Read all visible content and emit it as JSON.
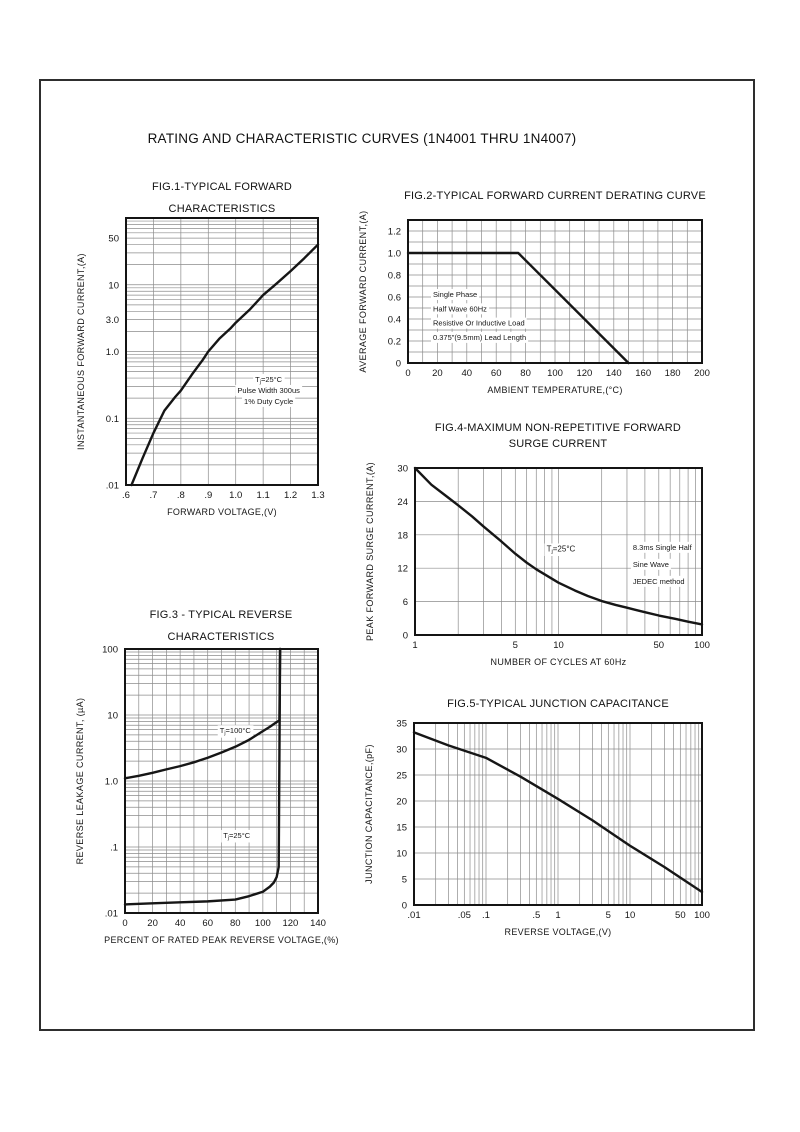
{
  "page": {
    "title": "RATING AND CHARACTERISTIC CURVES (1N4001 THRU 1N4007)"
  },
  "chart_data": [
    {
      "id": "fig1",
      "type": "line",
      "title_lines": [
        "FIG.1-TYPICAL FORWARD",
        "CHARACTERISTICS"
      ],
      "xlabel": "FORWARD VOLTAGE,(V)",
      "ylabel": "INSTANTANEOUS FORWARD CURRENT,(A)",
      "xscale": "linear",
      "yscale": "log",
      "xlim": [
        0.6,
        1.3
      ],
      "ylim": [
        0.01,
        100
      ],
      "xgrid": {
        "scale": "linear",
        "step": 0.1
      },
      "ygrid": {
        "scale": "log"
      },
      "xticks": {
        "values": [
          0.6,
          0.7,
          0.8,
          0.9,
          1.0,
          1.1,
          1.2,
          1.3
        ],
        "labels": [
          ".6",
          ".7",
          ".8",
          ".9",
          "1.0",
          "1.1",
          "1.2",
          "1.3"
        ]
      },
      "yticks": {
        "values": [
          50,
          10,
          3,
          1,
          0.1,
          0.01
        ],
        "labels": [
          "50",
          "10",
          "3.0",
          "1.0",
          "0.1",
          ".01"
        ]
      },
      "series": [
        {
          "name": "forward-current",
          "points": [
            [
              0.62,
              0.01
            ],
            [
              0.66,
              0.025
            ],
            [
              0.7,
              0.06
            ],
            [
              0.74,
              0.13
            ],
            [
              0.78,
              0.21
            ],
            [
              0.8,
              0.26
            ],
            [
              0.84,
              0.45
            ],
            [
              0.88,
              0.75
            ],
            [
              0.9,
              1.0
            ],
            [
              0.94,
              1.55
            ],
            [
              0.98,
              2.2
            ],
            [
              1.0,
              2.7
            ],
            [
              1.05,
              4.2
            ],
            [
              1.1,
              7.0
            ],
            [
              1.15,
              10.5
            ],
            [
              1.2,
              16
            ],
            [
              1.25,
              25
            ],
            [
              1.3,
              40
            ]
          ]
        }
      ],
      "annotations": [
        {
          "lines": [
            "Tj=25°C",
            "Pulse Width 300us",
            "1% Duty Cycle"
          ],
          "x": 1.12,
          "y": 0.35,
          "anchor": "middle",
          "line_height": 11,
          "font": 7.5
        }
      ]
    },
    {
      "id": "fig2",
      "type": "line",
      "title_lines": [
        "FIG.2-TYPICAL FORWARD CURRENT DERATING CURVE"
      ],
      "xlabel": "AMBIENT TEMPERATURE,(°C)",
      "ylabel": "AVERAGE FORWARD CURRENT,(A)",
      "xscale": "linear",
      "yscale": "linear",
      "xlim": [
        0,
        200
      ],
      "ylim": [
        0,
        1.3
      ],
      "xgrid": {
        "scale": "linear",
        "step": 10
      },
      "ygrid": {
        "scale": "linear",
        "step": 0.1
      },
      "xticks": {
        "values": [
          0,
          20,
          40,
          60,
          80,
          100,
          120,
          140,
          160,
          180,
          200
        ],
        "labels": [
          "0",
          "20",
          "40",
          "60",
          "80",
          "100",
          "120",
          "140",
          "160",
          "180",
          "200"
        ]
      },
      "yticks": {
        "values": [
          0,
          0.2,
          0.4,
          0.6,
          0.8,
          1.0,
          1.2
        ],
        "labels": [
          "0",
          "0.2",
          "0.4",
          "0.6",
          "0.8",
          "1.0",
          "1.2"
        ]
      },
      "series": [
        {
          "name": "derating",
          "points": [
            [
              0,
              1.0
            ],
            [
              75,
              1.0
            ],
            [
              150,
              0
            ]
          ]
        }
      ],
      "annotations": [
        {
          "lines": [
            "Single Phase",
            "Half Wave 60Hz",
            "Resistive Or Inductive Load",
            "0.375\"(9.5mm) Lead Length"
          ],
          "x": 17,
          "y": 0.6,
          "anchor": "start",
          "line_height": 14.3,
          "font": 7.5
        }
      ]
    },
    {
      "id": "fig4",
      "type": "line",
      "title_lines": [
        "FIG.4-MAXIMUM NON-REPETITIVE FORWARD",
        "SURGE CURRENT"
      ],
      "xlabel": "NUMBER OF CYCLES AT 60Hz",
      "ylabel": "PEAK FORWARD SURGE CURRENT,(A)",
      "xscale": "log",
      "yscale": "linear",
      "xlim": [
        1,
        100
      ],
      "ylim": [
        0,
        30
      ],
      "xgrid": {
        "scale": "log"
      },
      "ygrid": {
        "scale": "linear",
        "step": 6
      },
      "xticks": {
        "values": [
          1,
          5,
          10,
          50,
          100
        ],
        "labels": [
          "1",
          "5",
          "10",
          "50",
          "100"
        ]
      },
      "yticks": {
        "values": [
          0,
          6,
          12,
          18,
          24,
          30
        ],
        "labels": [
          "0",
          "6",
          "12",
          "18",
          "24",
          "30"
        ]
      },
      "series": [
        {
          "name": "surge-current",
          "points": [
            [
              1,
              30
            ],
            [
              1.3,
              27
            ],
            [
              1.7,
              24.7
            ],
            [
              2,
              23.3
            ],
            [
              2.5,
              21.3
            ],
            [
              3,
              19.5
            ],
            [
              4,
              16.8
            ],
            [
              5,
              14.6
            ],
            [
              6,
              13
            ],
            [
              7,
              11.8
            ],
            [
              8,
              10.9
            ],
            [
              10,
              9.4
            ],
            [
              13,
              8
            ],
            [
              16,
              7
            ],
            [
              20,
              6.1
            ],
            [
              25,
              5.4
            ],
            [
              30,
              4.9
            ],
            [
              40,
              4.1
            ],
            [
              50,
              3.5
            ],
            [
              65,
              2.9
            ],
            [
              80,
              2.4
            ],
            [
              100,
              1.9
            ]
          ]
        }
      ],
      "annotations": [
        {
          "lines": [
            "Tj=25°C"
          ],
          "x": 10.4,
          "y": 15,
          "anchor": "middle",
          "line_height": 17,
          "font": 8
        },
        {
          "lines": [
            "8.3ms Single Half",
            "Sine Wave",
            "JEDEC method"
          ],
          "x": 33,
          "y": 15.3,
          "anchor": "start",
          "line_height": 17,
          "font": 7.5
        }
      ]
    },
    {
      "id": "fig3",
      "type": "line",
      "title_lines": [
        "FIG.3 - TYPICAL REVERSE",
        "CHARACTERISTICS"
      ],
      "xlabel": "PERCENT OF RATED PEAK REVERSE VOLTAGE,(%)",
      "ylabel": "REVERSE LEAKAGE CURRENT, (µA)",
      "xscale": "linear",
      "yscale": "log",
      "xlim": [
        0,
        140
      ],
      "ylim": [
        0.01,
        100
      ],
      "xgrid": {
        "scale": "linear",
        "step": 10
      },
      "ygrid": {
        "scale": "log"
      },
      "xticks": {
        "values": [
          0,
          20,
          40,
          60,
          80,
          100,
          120,
          140
        ],
        "labels": [
          "0",
          "20",
          "40",
          "60",
          "80",
          "100",
          "120",
          "140"
        ]
      },
      "yticks": {
        "values": [
          100,
          10,
          1,
          0.1,
          0.01
        ],
        "labels": [
          "100",
          "10",
          "1.0",
          ".1",
          ".01"
        ]
      },
      "series": [
        {
          "name": "Tj=100°C",
          "points": [
            [
              0,
              1.1
            ],
            [
              10,
              1.2
            ],
            [
              20,
              1.33
            ],
            [
              30,
              1.5
            ],
            [
              40,
              1.68
            ],
            [
              50,
              1.92
            ],
            [
              60,
              2.25
            ],
            [
              70,
              2.7
            ],
            [
              80,
              3.3
            ],
            [
              90,
              4.2
            ],
            [
              100,
              5.7
            ],
            [
              105,
              6.6
            ],
            [
              108,
              7.3
            ],
            [
              110,
              7.8
            ],
            [
              112,
              8.3
            ],
            [
              112.5,
              100
            ]
          ]
        },
        {
          "name": "Tj=25°C",
          "points": [
            [
              0,
              0.0135
            ],
            [
              20,
              0.014
            ],
            [
              40,
              0.0145
            ],
            [
              60,
              0.015
            ],
            [
              80,
              0.016
            ],
            [
              90,
              0.018
            ],
            [
              100,
              0.021
            ],
            [
              105,
              0.025
            ],
            [
              108,
              0.029
            ],
            [
              110,
              0.035
            ],
            [
              111.5,
              0.05
            ],
            [
              112.5,
              100
            ]
          ]
        }
      ],
      "annotations": [
        {
          "lines": [
            "Tj=100°C"
          ],
          "x": 80,
          "y": 5.3,
          "anchor": "middle",
          "line_height": 11,
          "font": 7.5
        },
        {
          "lines": [
            "Tj=25°C"
          ],
          "x": 81,
          "y": 0.137,
          "anchor": "middle",
          "line_height": 11,
          "font": 7.5
        }
      ]
    },
    {
      "id": "fig5",
      "type": "line",
      "title_lines": [
        "FIG.5-TYPICAL JUNCTION CAPACITANCE"
      ],
      "xlabel": "REVERSE VOLTAGE,(V)",
      "ylabel": "JUNCTION CAPACITANCE,(pF)",
      "xscale": "log",
      "yscale": "linear",
      "xlim": [
        0.01,
        100
      ],
      "ylim": [
        0,
        35
      ],
      "xgrid": {
        "scale": "log"
      },
      "ygrid": {
        "scale": "linear",
        "step": 5
      },
      "xticks": {
        "values": [
          0.01,
          0.05,
          0.1,
          0.5,
          1,
          5,
          10,
          50,
          100
        ],
        "labels": [
          ".01",
          ".05",
          ".1",
          ".5",
          "1",
          "5",
          "10",
          "50",
          "100"
        ]
      },
      "yticks": {
        "values": [
          0,
          5,
          10,
          15,
          20,
          25,
          30,
          35
        ],
        "labels": [
          "0",
          "5",
          "10",
          "15",
          "20",
          "25",
          "30",
          "35"
        ]
      },
      "series": [
        {
          "name": "junction-capacitance",
          "points": [
            [
              0.01,
              33.2
            ],
            [
              0.03,
              30.7
            ],
            [
              0.1,
              28.3
            ],
            [
              0.3,
              24.7
            ],
            [
              1,
              20.4
            ],
            [
              3,
              16.3
            ],
            [
              10,
              11.4
            ],
            [
              30,
              7.3
            ],
            [
              100,
              2.5
            ]
          ]
        }
      ],
      "annotations": []
    }
  ]
}
